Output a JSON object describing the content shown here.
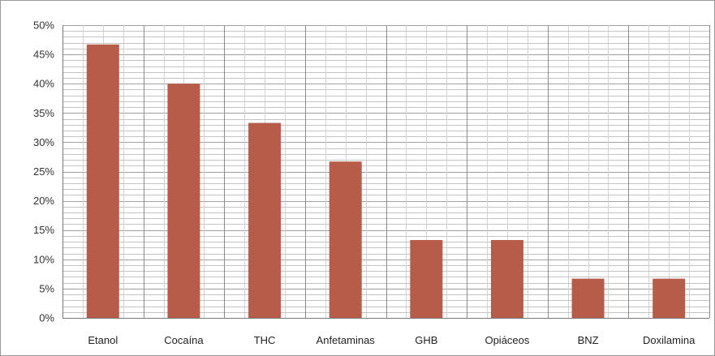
{
  "chart_data": {
    "type": "bar",
    "title": "",
    "xlabel": "",
    "ylabel": "",
    "categories": [
      "Etanol",
      "Cocaína",
      "THC",
      "Anfetaminas",
      "GHB",
      "Opiáceos",
      "BNZ",
      "Doxilamina"
    ],
    "values": [
      46.7,
      40.0,
      33.3,
      26.7,
      13.3,
      13.3,
      6.7,
      6.7
    ],
    "ylim": [
      0,
      50
    ],
    "y_ticks": [
      "0%",
      "5%",
      "10%",
      "15%",
      "20%",
      "25%",
      "30%",
      "35%",
      "40%",
      "45%",
      "50%"
    ],
    "grid": true,
    "legend": "none",
    "bar_color": "#b85c4a",
    "grid_color": "#b0b0b0"
  }
}
